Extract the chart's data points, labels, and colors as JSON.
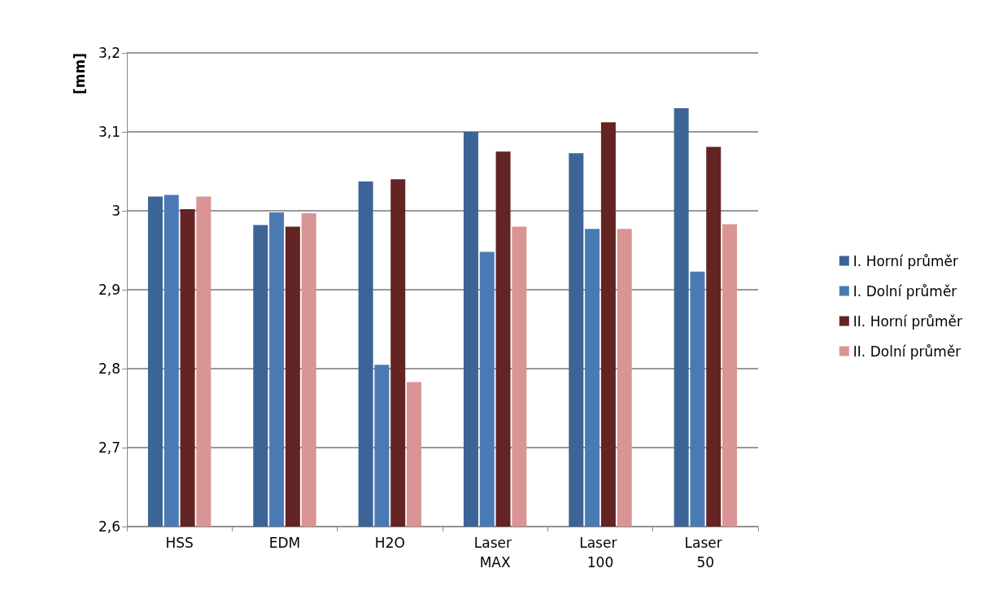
{
  "chart_data": {
    "type": "bar",
    "ylabel": "[mm]",
    "categories": [
      "HSS",
      "EDM",
      "H2O",
      "Laser MAX",
      "Laser 100",
      "Laser 50"
    ],
    "series": [
      {
        "name": "I. Horní průměr",
        "color": "#3c6496",
        "values": [
          3.018,
          2.982,
          3.037,
          3.1,
          3.073,
          3.13
        ]
      },
      {
        "name": "I. Dolní průměr",
        "color": "#4a7ab4",
        "values": [
          3.02,
          2.998,
          2.805,
          2.948,
          2.977,
          2.923
        ]
      },
      {
        "name": "II. Horní průměr",
        "color": "#632423",
        "values": [
          3.002,
          2.98,
          3.04,
          3.075,
          3.112,
          3.081
        ]
      },
      {
        "name": "II. Dolní průměr",
        "color": "#d99594",
        "values": [
          3.018,
          2.997,
          2.783,
          2.98,
          2.977,
          2.983
        ]
      }
    ],
    "ylim": [
      2.6,
      3.2
    ],
    "yticks": [
      {
        "value": 2.6,
        "label": "2,6"
      },
      {
        "value": 2.7,
        "label": "2,7"
      },
      {
        "value": 2.8,
        "label": "2,8"
      },
      {
        "value": 2.9,
        "label": "2,9"
      },
      3,
      {
        "value": 3.1,
        "label": "3,1"
      },
      {
        "value": 3.2,
        "label": "3,2"
      }
    ],
    "grid": "y",
    "legend": "right"
  }
}
